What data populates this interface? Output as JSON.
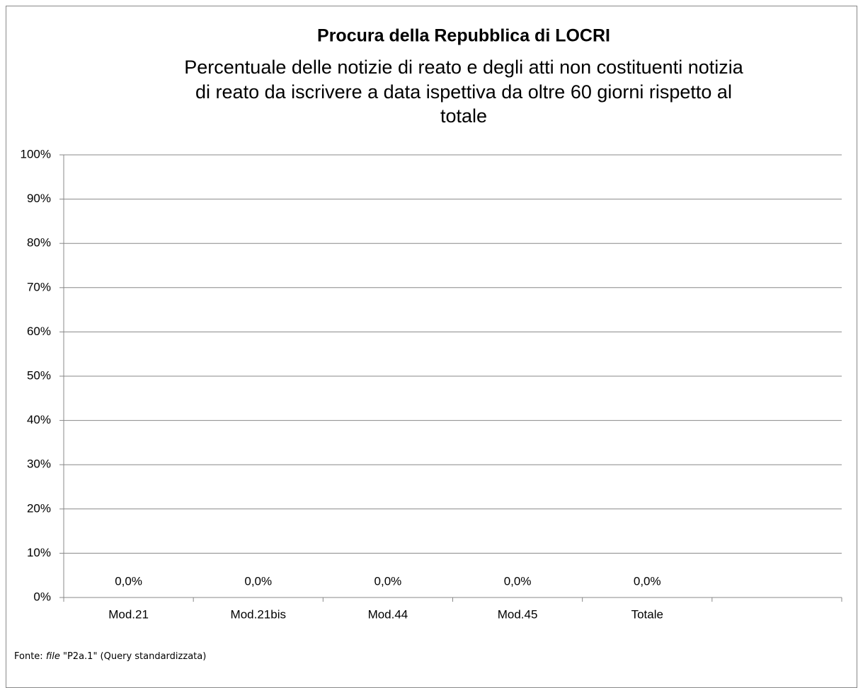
{
  "chart_data": {
    "type": "bar",
    "title": "Procura della Repubblica di LOCRI",
    "subtitle": [
      "Percentuale delle notizie di reato e degli atti non costituenti notizia",
      "di reato da iscrivere a data ispettiva da oltre 60 giorni rispetto al",
      "totale"
    ],
    "categories": [
      "Mod.21",
      "Mod.21bis",
      "Mod.44",
      "Mod.45",
      "Totale",
      null
    ],
    "values": [
      0,
      0,
      0,
      0,
      0,
      null
    ],
    "value_labels": [
      "0,0%",
      "0,0%",
      "0,0%",
      "0,0%",
      "0,0%",
      null
    ],
    "color": "#4f81bd",
    "ylim": [
      0,
      100
    ],
    "yticks": [
      {
        "value": 0,
        "label": "0%"
      },
      {
        "value": 10,
        "label": "10%"
      },
      {
        "value": 20,
        "label": "20%"
      },
      {
        "value": 30,
        "label": "30%"
      },
      {
        "value": 40,
        "label": "40%"
      },
      {
        "value": 50,
        "label": "50%"
      },
      {
        "value": 60,
        "label": "60%"
      },
      {
        "value": 70,
        "label": "70%"
      },
      {
        "value": 80,
        "label": "80%"
      },
      {
        "value": 90,
        "label": "90%"
      },
      {
        "value": 100,
        "label": "100%"
      }
    ],
    "grid": true,
    "source": {
      "prefix": "Fonte:",
      "file": "file",
      "rest": "\"P2a.1\" (Query standardizzata)"
    }
  }
}
